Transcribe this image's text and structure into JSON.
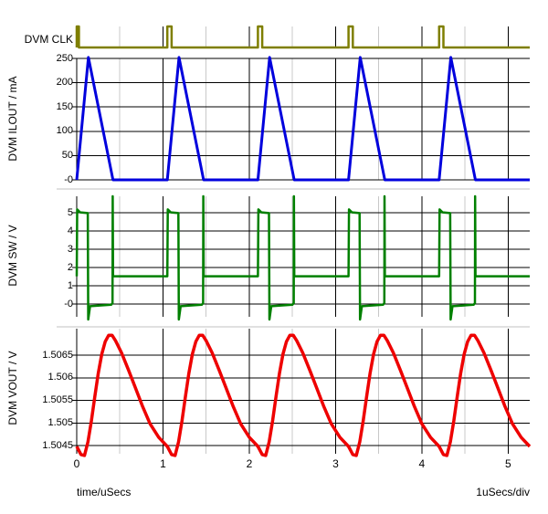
{
  "colors": {
    "clk_trace": "#7f7f00",
    "ilout_trace": "#0000dd",
    "sw_trace": "#008000",
    "vout_trace": "#ee0000",
    "grid_major": "#000000",
    "grid_minor": "#c8c8c8",
    "separator": "#c0c0c0",
    "background": "#ffffff",
    "text": "#000000"
  },
  "x_axis": {
    "caption": "time/uSecs",
    "scale_caption": "1uSecs/div",
    "tick_labels": [
      "0",
      "1",
      "2",
      "3",
      "4",
      "5"
    ],
    "tick_values": [
      0,
      1,
      2,
      3,
      4,
      5
    ],
    "minor_tick_values": [
      0.5,
      1.5,
      2.5,
      3.5,
      4.5
    ],
    "range": [
      0,
      5.25
    ],
    "unit": "uSecs"
  },
  "panes": {
    "clk": {
      "label": "DVM CLK"
    },
    "ilout": {
      "label": "DVM ILOUT / mA",
      "tick_labels": [
        "250",
        "200",
        "150",
        "100",
        "50",
        "-0"
      ],
      "tick_values": [
        250,
        200,
        150,
        100,
        50,
        0
      ]
    },
    "sw": {
      "label": "DVM SW / V",
      "tick_labels": [
        "5",
        "4",
        "3",
        "2",
        "1",
        "-0"
      ],
      "tick_values": [
        5,
        4,
        3,
        2,
        1,
        0
      ]
    },
    "vout": {
      "label": "DVM VOUT / V",
      "tick_labels": [
        "1.5065",
        "1.506",
        "1.5055",
        "1.505",
        "1.5045"
      ],
      "tick_values": [
        1.5065,
        1.506,
        1.5055,
        1.505,
        1.5045
      ]
    }
  },
  "chart_data": [
    {
      "type": "line",
      "title": "DVM CLK",
      "x": "time/uSecs",
      "x_range": [
        0,
        5.25
      ],
      "signal": "digital-clock-pulses",
      "low_level": 0,
      "high_level": 1,
      "pulses": [
        {
          "t": 0.0,
          "width": 0.025
        },
        {
          "t": 1.05,
          "width": 0.05
        },
        {
          "t": 2.1,
          "width": 0.05
        },
        {
          "t": 3.15,
          "width": 0.05
        },
        {
          "t": 4.2,
          "width": 0.05
        }
      ]
    },
    {
      "type": "line",
      "title": "DVM ILOUT / mA",
      "x": "time/uSecs",
      "x_range": [
        0,
        5.25
      ],
      "ylim": [
        0,
        250
      ],
      "yticks": [
        250,
        200,
        150,
        100,
        50,
        0
      ],
      "period_us": 1.05,
      "cycle_starts": [
        0,
        1.05,
        2.1,
        3.15,
        4.2
      ],
      "cycle_points": [
        [
          0.0,
          0
        ],
        [
          0.135,
          252
        ],
        [
          0.42,
          0
        ],
        [
          1.05,
          0
        ]
      ]
    },
    {
      "type": "line",
      "title": "DVM SW / V",
      "x": "time/uSecs",
      "x_range": [
        0,
        5.25
      ],
      "ylim": [
        0,
        5
      ],
      "yticks": [
        5,
        4,
        3,
        2,
        1,
        0
      ],
      "period_us": 1.05,
      "cycle_starts": [
        0,
        1.05,
        2.1,
        3.15,
        4.2
      ],
      "cycle_points": [
        [
          0.0,
          1.52
        ],
        [
          0.005,
          5.18
        ],
        [
          0.04,
          5.02
        ],
        [
          0.128,
          4.98
        ],
        [
          0.133,
          -0.85
        ],
        [
          0.155,
          -0.12
        ],
        [
          0.4,
          -0.04
        ],
        [
          0.413,
          0.04
        ],
        [
          0.415,
          0.04
        ],
        [
          0.417,
          5.9
        ],
        [
          0.421,
          1.52
        ],
        [
          1.05,
          1.52
        ]
      ]
    },
    {
      "type": "line",
      "title": "DVM VOUT / V",
      "x": "time/uSecs",
      "x_range": [
        0,
        5.25
      ],
      "ylim": [
        1.5045,
        1.5065
      ],
      "yticks": [
        1.5065,
        1.506,
        1.5055,
        1.505,
        1.5045
      ],
      "period_us": 1.05,
      "cycle_starts": [
        0,
        1.05,
        2.1,
        3.15,
        4.2
      ],
      "cycle_points": [
        [
          0.0,
          1.50448
        ],
        [
          0.05,
          1.5043
        ],
        [
          0.09,
          1.50428
        ],
        [
          0.13,
          1.50458
        ],
        [
          0.17,
          1.50505
        ],
        [
          0.21,
          1.50558
        ],
        [
          0.25,
          1.5061
        ],
        [
          0.29,
          1.50652
        ],
        [
          0.33,
          1.5068
        ],
        [
          0.37,
          1.50694
        ],
        [
          0.41,
          1.50694
        ],
        [
          0.45,
          1.50682
        ],
        [
          0.52,
          1.50655
        ],
        [
          0.6,
          1.50617
        ],
        [
          0.68,
          1.50578
        ],
        [
          0.76,
          1.50538
        ],
        [
          0.85,
          1.50498
        ],
        [
          0.95,
          1.50468
        ],
        [
          1.05,
          1.50448
        ]
      ]
    }
  ]
}
